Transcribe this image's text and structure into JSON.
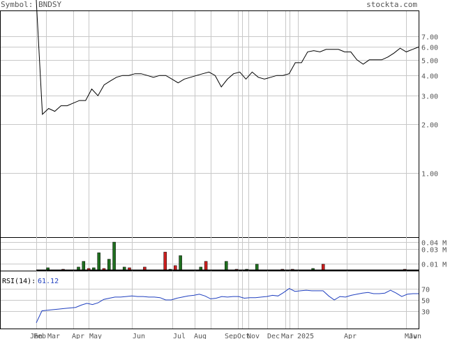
{
  "header": {
    "symbol_label": "Symbol:",
    "symbol": "BNDSY",
    "site": "stockta.com"
  },
  "rsi": {
    "label": "RSI(14):",
    "value": "61.12",
    "ticks": [
      "70",
      "50",
      "30"
    ]
  },
  "colors": {
    "price_line": "#000000",
    "rsi_line": "#1f3fbf",
    "volume_up": "#1f6f1f",
    "volume_down": "#cc1f1f",
    "grid": "#c8c8c8",
    "frame": "#000000"
  },
  "chart_data": {
    "type": "line",
    "x_labels": [
      "Jan",
      "Feb",
      "Mar",
      "Apr",
      "May",
      "Jun",
      "Jul",
      "Aug",
      "Sep",
      "Oct",
      "Nov",
      "Dec",
      "Mar",
      "2025",
      "Apr",
      "May",
      "Jun"
    ],
    "price": {
      "scale": "log",
      "yticks": [
        "7.00",
        "6.00",
        "5.00",
        "4.00",
        "3.00",
        "2.00",
        "1.00"
      ],
      "ytick_values": [
        7,
        6,
        5,
        4,
        3,
        2,
        1
      ],
      "ylim": [
        0.4,
        10
      ],
      "values": [
        12,
        2.3,
        2.5,
        2.4,
        2.6,
        2.6,
        2.7,
        2.8,
        2.8,
        3.3,
        3.0,
        3.5,
        3.7,
        3.9,
        4.0,
        4.0,
        4.1,
        4.1,
        4.0,
        3.9,
        4.0,
        4.0,
        3.8,
        3.6,
        3.8,
        3.9,
        4.0,
        4.1,
        4.2,
        4.0,
        3.4,
        3.8,
        4.1,
        4.2,
        3.8,
        4.2,
        3.9,
        3.8,
        3.9,
        4.0,
        4.0,
        4.1,
        4.8,
        4.8,
        5.6,
        5.7,
        5.6,
        5.8,
        5.8,
        5.8,
        5.6,
        5.6,
        5.0,
        4.7,
        5.0,
        5.0,
        5.0,
        5.2,
        5.5,
        5.9,
        5.6,
        5.8,
        6.0
      ]
    },
    "volume": {
      "unit": "M",
      "yticks": [
        "0.04 M",
        "0.03 M",
        "0.01 M"
      ],
      "ytick_values": [
        0.04,
        0.03,
        0.01
      ],
      "ymax": 0.045,
      "bars": [
        {
          "i": 2,
          "v": 0.004,
          "dir": "up"
        },
        {
          "i": 5,
          "v": 0.002,
          "dir": "down"
        },
        {
          "i": 8,
          "v": 0.005,
          "dir": "up"
        },
        {
          "i": 9,
          "v": 0.013,
          "dir": "up"
        },
        {
          "i": 10,
          "v": 0.003,
          "dir": "down"
        },
        {
          "i": 11,
          "v": 0.004,
          "dir": "up"
        },
        {
          "i": 12,
          "v": 0.025,
          "dir": "up"
        },
        {
          "i": 13,
          "v": 0.003,
          "dir": "down"
        },
        {
          "i": 14,
          "v": 0.016,
          "dir": "up"
        },
        {
          "i": 15,
          "v": 0.04,
          "dir": "up"
        },
        {
          "i": 17,
          "v": 0.005,
          "dir": "up"
        },
        {
          "i": 18,
          "v": 0.004,
          "dir": "down"
        },
        {
          "i": 21,
          "v": 0.005,
          "dir": "down"
        },
        {
          "i": 25,
          "v": 0.026,
          "dir": "down"
        },
        {
          "i": 26,
          "v": 0.002,
          "dir": "up"
        },
        {
          "i": 27,
          "v": 0.007,
          "dir": "down"
        },
        {
          "i": 28,
          "v": 0.021,
          "dir": "up"
        },
        {
          "i": 32,
          "v": 0.005,
          "dir": "up"
        },
        {
          "i": 33,
          "v": 0.013,
          "dir": "down"
        },
        {
          "i": 35,
          "v": 0.001,
          "dir": "down"
        },
        {
          "i": 37,
          "v": 0.013,
          "dir": "up"
        },
        {
          "i": 39,
          "v": 0.002,
          "dir": "down"
        },
        {
          "i": 41,
          "v": 0.002,
          "dir": "up"
        },
        {
          "i": 43,
          "v": 0.009,
          "dir": "up"
        },
        {
          "i": 48,
          "v": 0.002,
          "dir": "down"
        },
        {
          "i": 50,
          "v": 0.002,
          "dir": "down"
        },
        {
          "i": 54,
          "v": 0.003,
          "dir": "up"
        },
        {
          "i": 56,
          "v": 0.009,
          "dir": "down"
        },
        {
          "i": 57,
          "v": 0.001,
          "dir": "down"
        },
        {
          "i": 72,
          "v": 0.002,
          "dir": "down"
        }
      ]
    },
    "rsi": {
      "ylim": [
        0,
        100
      ],
      "values": [
        10,
        31,
        32,
        33,
        34,
        35,
        36,
        37,
        41,
        44,
        42,
        45,
        51,
        53,
        55,
        55,
        56,
        57,
        56,
        56,
        55,
        55,
        54,
        50,
        50,
        53,
        55,
        57,
        58,
        60,
        57,
        52,
        53,
        56,
        55,
        56,
        56,
        53,
        54,
        54,
        55,
        56,
        58,
        57,
        63,
        70,
        65,
        66,
        67,
        66,
        66,
        66,
        57,
        50,
        56,
        55,
        58,
        60,
        62,
        63,
        61,
        61,
        62,
        67,
        62,
        56,
        60,
        61,
        61
      ]
    }
  }
}
